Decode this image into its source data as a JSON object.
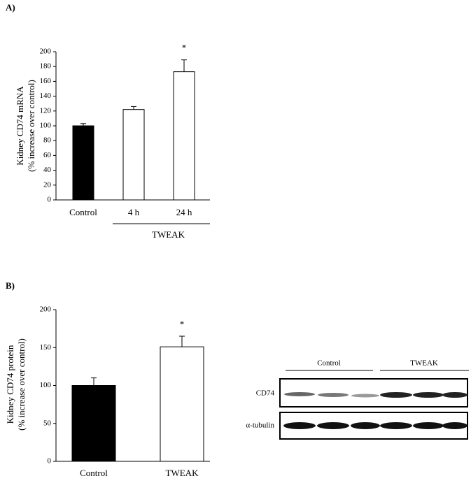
{
  "chart_data": [
    {
      "type": "bar",
      "panel": "A)",
      "ylabel": [
        "Kidney CD74 mRNA",
        "(% increase over control)"
      ],
      "categories": [
        "Control",
        "4 h",
        "24 h"
      ],
      "values": [
        100,
        122,
        173
      ],
      "errors": [
        3,
        4,
        16
      ],
      "colors": [
        "#000000",
        "#ffffff",
        "#ffffff"
      ],
      "ylim": [
        0,
        200
      ],
      "yticks": [
        0,
        20,
        40,
        60,
        80,
        100,
        120,
        140,
        160,
        180,
        200
      ],
      "group": {
        "label": "TWEAK",
        "categories": [
          "4 h",
          "24 h"
        ]
      },
      "annotations": [
        {
          "text": "*",
          "category": "24 h"
        }
      ]
    },
    {
      "type": "bar",
      "panel": "B)",
      "ylabel": [
        "Kidney CD74 protein",
        "(% increase over control)"
      ],
      "categories": [
        "Control",
        "TWEAK"
      ],
      "values": [
        100,
        151
      ],
      "errors": [
        10,
        14
      ],
      "colors": [
        "#000000",
        "#ffffff"
      ],
      "ylim": [
        0,
        200
      ],
      "yticks": [
        0,
        50,
        100,
        150,
        200
      ],
      "annotations": [
        {
          "text": "*",
          "category": "TWEAK"
        }
      ]
    }
  ],
  "blot": {
    "groups": [
      "Control",
      "TWEAK"
    ],
    "rows": [
      "CD74",
      "α-tubulin"
    ]
  }
}
